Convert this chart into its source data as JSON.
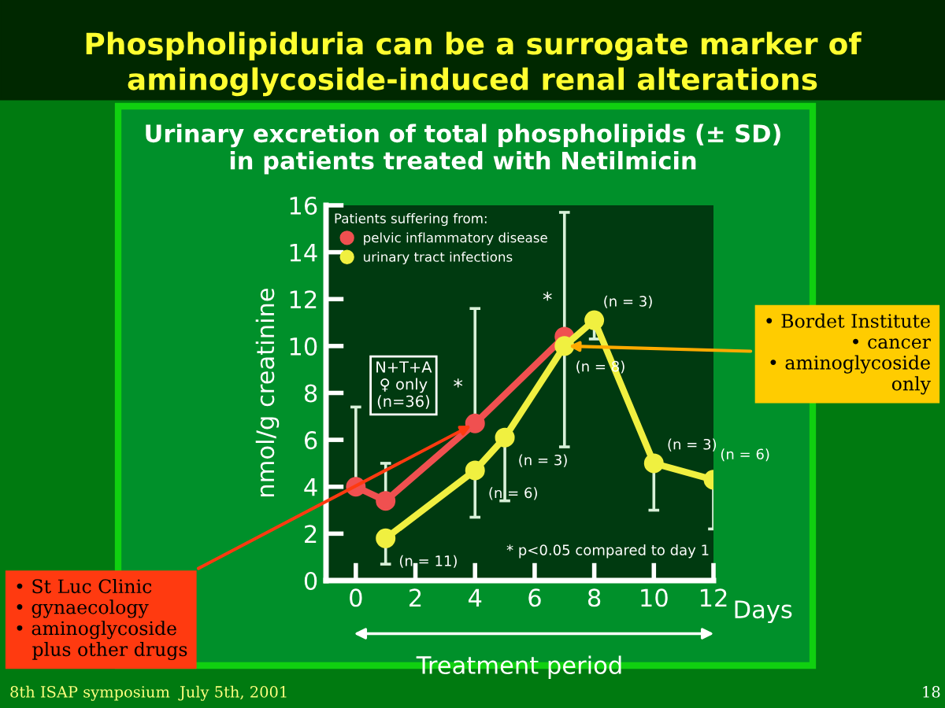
{
  "chart_data": {
    "type": "line",
    "title": "Phospholipiduria can be a surrogate marker of\naminoglycoside-induced renal alterations",
    "subtitle": "Urinary excretion of total phospholipids (± SD)\nin patients treated with Netilmicin",
    "xlabel": "Treatment period",
    "ylabel": "nmol/g creatinine",
    "legend_title": "Patients suffering from:",
    "xlim": [
      -1,
      12
    ],
    "ylim": [
      0,
      16
    ],
    "xticks": [
      0,
      2,
      4,
      6,
      8,
      10,
      12
    ],
    "yticks": [
      0,
      2,
      4,
      6,
      8,
      10,
      12,
      14,
      16
    ],
    "marker": "circle",
    "line_style": "solid",
    "legend": "top left",
    "grid": false,
    "series": [
      {
        "name": "pelvic inflammatory disease",
        "color": "#f05050",
        "x": [
          0,
          1,
          4,
          7
        ],
        "values": [
          4.0,
          3.4,
          6.7,
          10.4
        ],
        "errors": [
          [
            4.0,
            7.4
          ],
          [
            3.4,
            5.0
          ],
          [
            6.7,
            11.6
          ],
          [
            10.4,
            15.7
          ]
        ]
      },
      {
        "name": "urinary tract infections",
        "color": "#f0f040",
        "x": [
          1,
          4,
          5,
          7,
          8,
          10,
          12
        ],
        "values": [
          1.8,
          4.7,
          6.1,
          10.0,
          11.1,
          5.0,
          4.3
        ],
        "errors": [
          [
            0.7,
            1.8
          ],
          [
            2.7,
            4.7
          ],
          [
            3.4,
            6.1
          ],
          [
            5.7,
            10.0
          ],
          [
            10.3,
            11.1
          ],
          [
            3.0,
            5.0
          ],
          [
            2.2,
            4.3
          ]
        ]
      }
    ],
    "annotations": [
      "* p<0.05 compared to day 1",
      "8th ISAP symposium",
      "July 5th, 2001",
      "18",
      "Days",
      "N+T+A\n♀ only\n(n=36)",
      {
        "text": "• St Luc Clinic\n• gynaecology\n• aminoglycoside\n   plus other drugs",
        "x": 4,
        "y": 6.7
      },
      {
        "text": "• Bordet Institute\n• cancer\n• aminoglycoside\n   only",
        "x": 7,
        "y": 10.0
      },
      {
        "text": "(n = 11)",
        "x": 1,
        "y": 1.8
      },
      {
        "text": "(n = 6)",
        "x": 4,
        "y": 4.7
      },
      {
        "text": "(n = 3)",
        "x": 5,
        "y": 6.1
      },
      {
        "text": "(n = 8)",
        "x": 7,
        "y": 10.0
      },
      {
        "text": "(n = 3)",
        "x": 8,
        "y": 11.1
      },
      {
        "text": "(n = 3)",
        "x": 10,
        "y": 5.0
      },
      {
        "text": "(n = 6)",
        "x": 12,
        "y": 4.3
      },
      {
        "text": "*",
        "x": 4,
        "y": 6.7
      },
      {
        "text": "*",
        "x": 7,
        "y": 10.4
      }
    ]
  }
}
